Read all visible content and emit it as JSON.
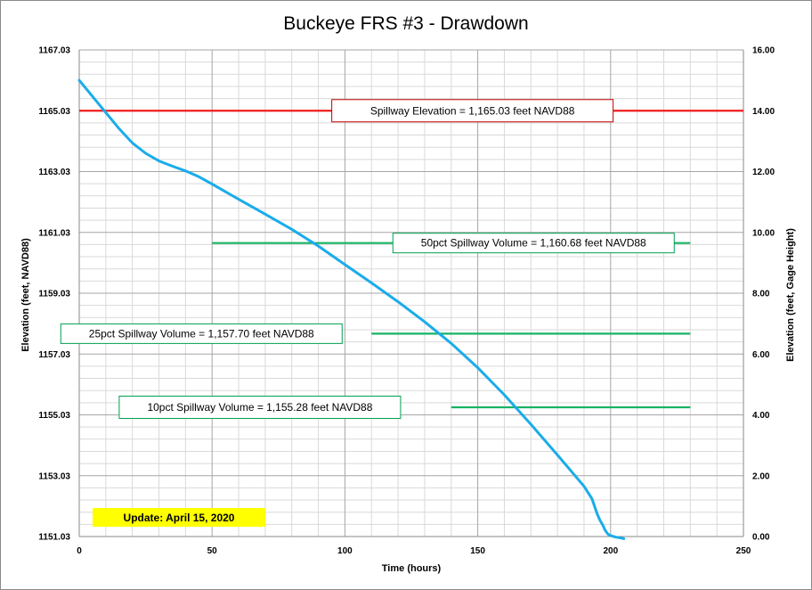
{
  "chart_data": {
    "type": "line",
    "title": "Buckeye FRS #3 - Drawdown",
    "xlabel": "Time (hours)",
    "ylabel": "Elevation  (feet, NAVD88)",
    "y2label": "Elevation  (feet, Gage  Height)",
    "xlim": [
      0,
      250
    ],
    "ylim": [
      1151.03,
      1167.03
    ],
    "y2lim": [
      0,
      16
    ],
    "x_ticks": [
      0,
      50,
      100,
      150,
      200,
      250
    ],
    "y_ticks": [
      "1151.03",
      "1153.03",
      "1155.03",
      "1157.03",
      "1159.03",
      "1161.03",
      "1163.03",
      "1165.03",
      "1167.03"
    ],
    "y2_ticks": [
      "0.00",
      "2.00",
      "4.00",
      "6.00",
      "8.00",
      "10.00",
      "12.00",
      "14.00",
      "16.00"
    ],
    "grid": true,
    "series": [
      {
        "color": "#1aacea",
        "x": [
          0,
          5,
          10,
          15,
          20,
          25,
          30,
          35,
          40,
          45,
          50,
          60,
          70,
          80,
          90,
          100,
          110,
          120,
          130,
          140,
          150,
          160,
          170,
          180,
          190,
          193,
          195,
          196,
          197,
          198,
          199,
          200,
          202,
          204,
          205
        ],
        "y": [
          1166.03,
          1165.5,
          1164.97,
          1164.44,
          1163.97,
          1163.63,
          1163.38,
          1163.21,
          1163.05,
          1162.86,
          1162.62,
          1162.12,
          1161.63,
          1161.13,
          1160.58,
          1159.97,
          1159.37,
          1158.75,
          1158.09,
          1157.38,
          1156.58,
          1155.69,
          1154.72,
          1153.71,
          1152.68,
          1152.27,
          1151.76,
          1151.56,
          1151.42,
          1151.23,
          1151.11,
          1151.06,
          1151.01,
          1150.98,
          1150.96
        ]
      }
    ],
    "reference_lines": [
      {
        "label": "Spillway Elevation = 1,165.03  feet NAVD88",
        "y": 1165.03,
        "x_start": 0,
        "x_end": 250,
        "color": "#ee1c1c",
        "label_x": 148,
        "border_color": "#c00000"
      },
      {
        "label": "50pct Spillway Volume = 1,160.68  feet NAVD88",
        "y": 1160.68,
        "x_start": 50,
        "x_end": 230,
        "color": "#16b364",
        "label_x": 171,
        "border_color": "#00a050"
      },
      {
        "label": "25pct Spillway Volume = 1,157.70  feet NAVD88",
        "y": 1157.7,
        "x_start": 110,
        "x_end": 230,
        "color": "#16b364",
        "label_x": 46,
        "border_color": "#00a050"
      },
      {
        "label": "10pct Spillway Volume = 1,155.28  feet NAVD88",
        "y": 1155.28,
        "x_start": 140,
        "x_end": 230,
        "color": "#16b364",
        "label_x": 68,
        "border_color": "#00a050"
      }
    ],
    "update_label": "Update: April 15, 2020",
    "update_color": "#ffff00"
  }
}
